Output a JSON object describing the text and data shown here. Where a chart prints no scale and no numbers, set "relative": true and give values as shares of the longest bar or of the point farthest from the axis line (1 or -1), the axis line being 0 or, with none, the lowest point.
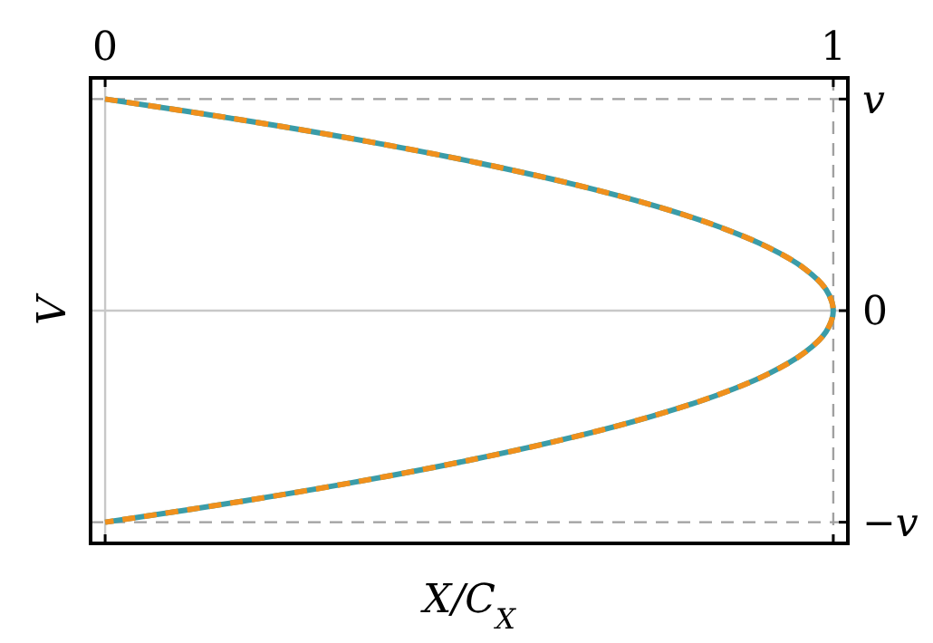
{
  "chart_data": {
    "type": "line",
    "xlabel": "X/C$_{X}$",
    "relative": true,
    "ylabel": "V",
    "xlim": [
      -0.02,
      1.02
    ],
    "xticks": [
      0,
      1
    ],
    "ref_lines": [
      {
        "axis": "x",
        "value": 0,
        "color": "#c8c8c8",
        "line_style": "solid"
      },
      {
        "axis": "y",
        "value": 0,
        "color": "#c8c8c8",
        "line_style": "solid",
        "label": "0"
      },
      {
        "axis": "y",
        "value": 1,
        "color": "#a0a0a0",
        "line_style": "dashed",
        "label": "v"
      },
      {
        "axis": "y",
        "value": -1,
        "color": "#a0a0a0",
        "line_style": "dashed",
        "label": "−v"
      },
      {
        "axis": "x",
        "value": 1,
        "color": "#a0a0a0",
        "line_style": "dashed"
      }
    ],
    "series": [
      {
        "color": "#3a9ca8",
        "line_style": "solid",
        "x": [
          0,
          0.19,
          0.36,
          0.51,
          0.64,
          0.75,
          0.84,
          0.91,
          0.96,
          0.99,
          1,
          0.99,
          0.96,
          0.91,
          0.84,
          0.75,
          0.64,
          0.51,
          0.36,
          0.19,
          0
        ],
        "values": [
          1,
          0.9,
          0.8,
          0.7,
          0.6,
          0.5,
          0.4,
          0.3,
          0.2,
          0.1,
          0,
          -0.1,
          -0.2,
          -0.3,
          -0.4,
          -0.5,
          -0.6,
          -0.7,
          -0.8,
          -0.9,
          -1
        ]
      },
      {
        "color": "#f0901c",
        "line_style": "dashed",
        "x": [
          0,
          0.19,
          0.36,
          0.51,
          0.64,
          0.75,
          0.84,
          0.91,
          0.96,
          0.99,
          1,
          0.99,
          0.96,
          0.91,
          0.84,
          0.75,
          0.64,
          0.51,
          0.36,
          0.19,
          0
        ],
        "values": [
          1,
          0.9,
          0.8,
          0.7,
          0.6,
          0.5,
          0.4,
          0.3,
          0.2,
          0.1,
          0,
          -0.1,
          -0.2,
          -0.3,
          -0.4,
          -0.5,
          -0.6,
          -0.7,
          -0.8,
          -0.9,
          -1
        ]
      }
    ]
  }
}
